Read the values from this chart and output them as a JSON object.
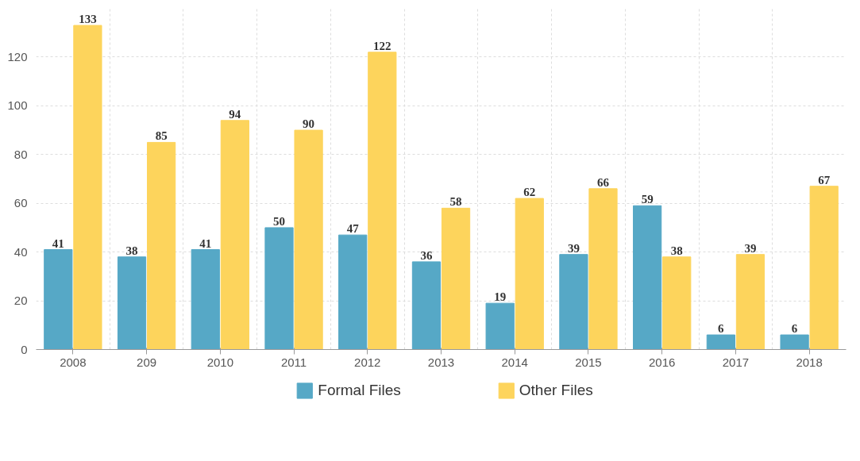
{
  "chart_data": {
    "type": "bar",
    "categories": [
      "2008",
      "209",
      "2010",
      "2011",
      "2012",
      "2013",
      "2014",
      "2015",
      "2016",
      "2017",
      "2018"
    ],
    "series": [
      {
        "name": "Formal Files",
        "color": "#56a8c6",
        "values": [
          41,
          38,
          41,
          50,
          47,
          36,
          19,
          39,
          59,
          6,
          6
        ]
      },
      {
        "name": "Other Files",
        "color": "#fdd45c",
        "values": [
          133,
          85,
          94,
          90,
          122,
          58,
          62,
          66,
          38,
          39,
          67
        ]
      }
    ],
    "ylim": [
      0,
      140
    ],
    "yticks": [
      0,
      20,
      40,
      60,
      80,
      100,
      120
    ],
    "grid": true,
    "legend": "bottom",
    "data_labels": true
  }
}
